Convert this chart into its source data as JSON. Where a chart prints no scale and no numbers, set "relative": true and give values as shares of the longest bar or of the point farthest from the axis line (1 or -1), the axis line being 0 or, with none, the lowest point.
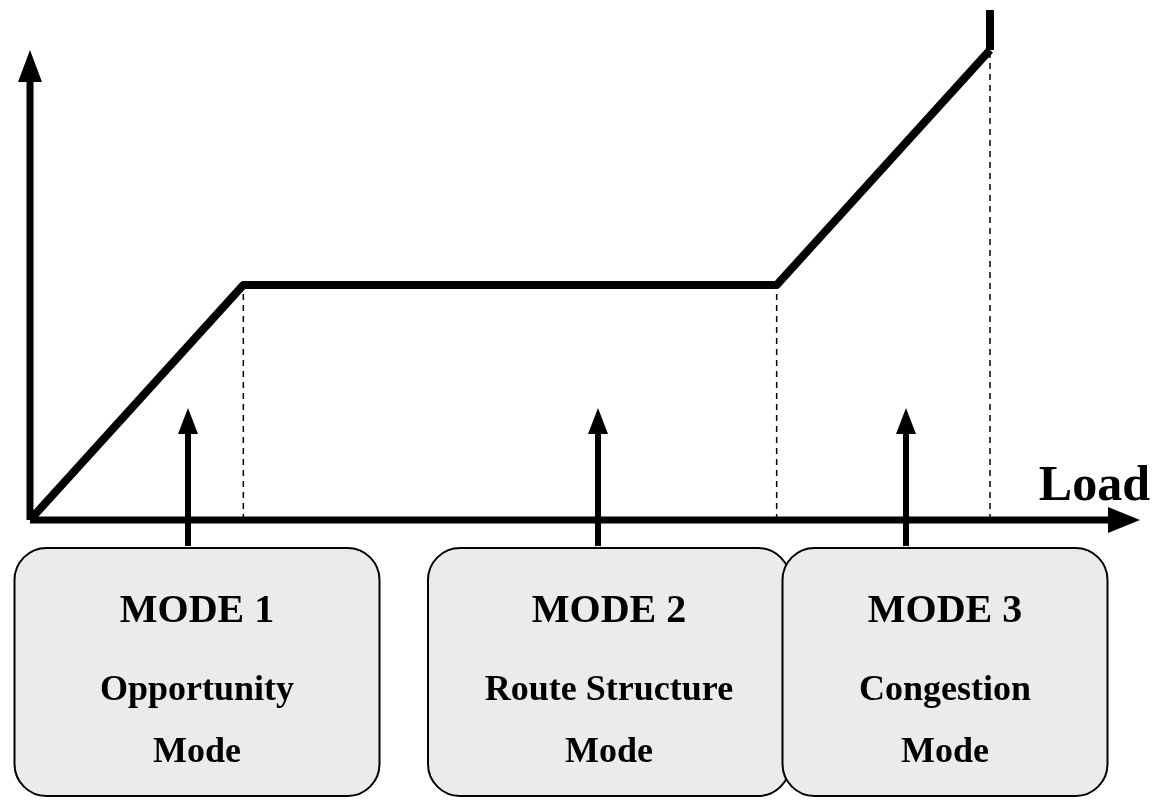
{
  "chart_data": {
    "type": "line",
    "relative": true,
    "xlabel": "Load",
    "tick_labels": false,
    "categories": [
      null,
      null,
      null,
      null,
      null,
      null,
      null,
      null,
      null,
      null
    ],
    "series": [
      {
        "color": "#000000",
        "values": [
          0,
          0.25,
          0.5,
          0.5,
          0.5,
          0.5,
          0.5,
          0.5,
          0.75,
          1
        ]
      }
    ],
    "marker": "none",
    "line_style": "solid",
    "annotations": [
      "MODE 1\nOpportunity\nMode",
      "MODE 2\nRoute Structure\nMode",
      "MODE 3\nCongestion\nMode"
    ]
  }
}
